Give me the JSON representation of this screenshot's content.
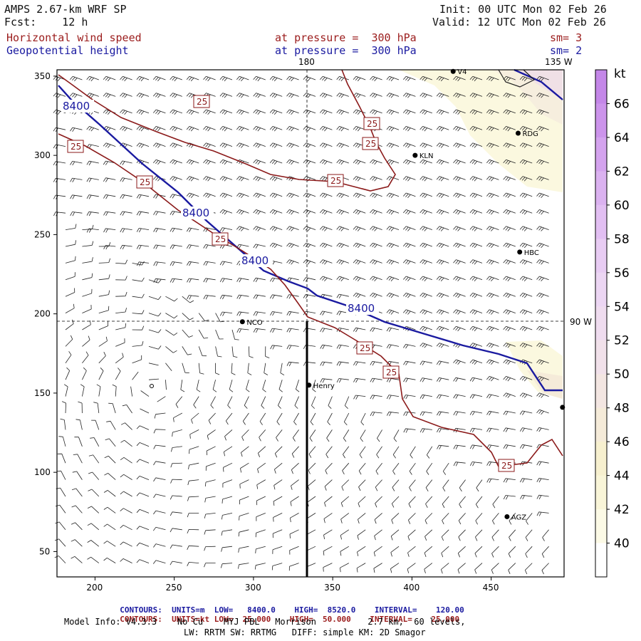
{
  "header": {
    "model": "AMPS 2.67-km WRF SP",
    "fcst": "Fcst:    12 h",
    "init": "Init: 00 UTC Mon 02 Feb 26",
    "valid": "Valid: 12 UTC Mon 02 Feb 26",
    "field1_name": "Horizontal wind speed",
    "field1_level": "at pressure =  300 hPa",
    "field1_sm": "sm= 3",
    "field2_name": "Geopotential height",
    "field2_level": "at pressure =  300 hPa",
    "field2_sm": "sm= 2"
  },
  "map": {
    "x_ticks": [
      "200",
      "250",
      "300",
      "350",
      "400",
      "450"
    ],
    "y_ticks": [
      "350",
      "300",
      "250",
      "200",
      "150",
      "100",
      "50"
    ],
    "meridian_180": "180",
    "meridian_135w": "135 W",
    "meridian_90w": "90 W",
    "height_labels": [
      "8400",
      "8400",
      "8400",
      "8400"
    ],
    "speed_labels": [
      "25",
      "25",
      "25",
      "25",
      "25",
      "25",
      "25",
      "25",
      "25",
      "25"
    ],
    "stations": [
      {
        "name": "KLN",
        "gx": 402,
        "gy": 300
      },
      {
        "name": "RDG",
        "gx": 467,
        "gy": 314
      },
      {
        "name": "HBC",
        "gx": 468,
        "gy": 239
      },
      {
        "name": "NCO",
        "gx": 293,
        "gy": 195
      },
      {
        "name": "Henry",
        "gx": 335,
        "gy": 155
      },
      {
        "name": "AGZ",
        "gx": 460,
        "gy": 72
      },
      {
        "name": "V4",
        "gx": 426,
        "gy": 353
      },
      {
        "name": "",
        "gx": 495,
        "gy": 141
      }
    ]
  },
  "colorbar": {
    "unit": "kt",
    "labels": [
      "66",
      "64",
      "62",
      "60",
      "58",
      "56",
      "54",
      "52",
      "50",
      "48",
      "46",
      "44",
      "42",
      "40"
    ],
    "colors": [
      "#c487e8",
      "#cc94eb",
      "#d4a3ee",
      "#dbb2f0",
      "#e2bff2",
      "#e8ccf3",
      "#ecd6f3",
      "#efdcef",
      "#f1e1ea",
      "#f3e6e2",
      "#f5ebd9",
      "#f7f0cf",
      "#f9f5d8",
      "#fcfae6",
      "#ffffff"
    ]
  },
  "footer": {
    "c1_label": "CONTOURS:",
    "c1_units": "UNITS=m",
    "c1_low": "LOW=   8400.0",
    "c1_high": "HIGH=  8520.0",
    "c1_int": "INTERVAL=    120.00",
    "c2_label": "CONTOURS:",
    "c2_units": "UNITS=kt",
    "c2_low": "LOW=  25.000",
    "c2_high": "HIGH=  50.000",
    "c2_int": "INTERVAL=    25.000",
    "model_info": "Model Info: V4.3.3    No Cu    MYJ PBL   Morrison          2.7 km,  60 levels,",
    "model_info2": "LW: RRTM SW: RRTMG   DIFF: simple KM: 2D Smagor"
  }
}
